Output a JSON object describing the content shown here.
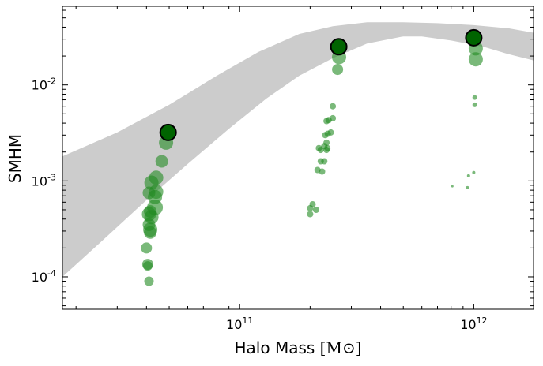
{
  "chart_data": {
    "type": "scatter",
    "xlabel": "Halo Mass",
    "xlabel_unit": "[M⊙]",
    "ylabel": "SMHM",
    "xscale": "log",
    "yscale": "log",
    "xlim": [
      17500000000.0,
      1800000000000.0
    ],
    "ylim": [
      4.6e-05,
      0.066
    ],
    "x_ticks": [
      {
        "value": 100000000000.0,
        "base": "10",
        "exp": "11"
      },
      {
        "value": 1000000000000.0,
        "base": "10",
        "exp": "12"
      }
    ],
    "y_ticks": [
      {
        "value": 0.0001,
        "base": "10",
        "exp": "-4"
      },
      {
        "value": 0.001,
        "base": "10",
        "exp": "-3"
      },
      {
        "value": 0.01,
        "base": "10",
        "exp": "-2"
      }
    ],
    "grid": false,
    "band": {
      "color": "#cccccc",
      "upper": [
        [
          17500000000.0,
          0.0018
        ],
        [
          30000000000.0,
          0.0032
        ],
        [
          50000000000.0,
          0.0062
        ],
        [
          80000000000.0,
          0.0125
        ],
        [
          120000000000.0,
          0.022
        ],
        [
          180000000000.0,
          0.034
        ],
        [
          250000000000.0,
          0.041
        ],
        [
          350000000000.0,
          0.045
        ],
        [
          500000000000.0,
          0.045
        ],
        [
          700000000000.0,
          0.044
        ],
        [
          1000000000000.0,
          0.042
        ],
        [
          1400000000000.0,
          0.039
        ],
        [
          1800000000000.0,
          0.035
        ]
      ],
      "lower": [
        [
          17500000000.0,
          0.0001
        ],
        [
          25000000000.0,
          0.00022
        ],
        [
          40000000000.0,
          0.00063
        ],
        [
          60000000000.0,
          0.0015
        ],
        [
          90000000000.0,
          0.0035
        ],
        [
          130000000000.0,
          0.0072
        ],
        [
          180000000000.0,
          0.0125
        ],
        [
          250000000000.0,
          0.019
        ],
        [
          350000000000.0,
          0.027
        ],
        [
          500000000000.0,
          0.032
        ],
        [
          600000000000.0,
          0.032
        ],
        [
          800000000000.0,
          0.029
        ],
        [
          1100000000000.0,
          0.025
        ],
        [
          1400000000000.0,
          0.021
        ],
        [
          1800000000000.0,
          0.018
        ]
      ]
    },
    "series": [
      {
        "color": "#228b22",
        "opacity": 0.6,
        "points": [
          [
            41000000000.0,
            9e-05,
            6
          ],
          [
            40500000000.0,
            0.000135,
            7
          ],
          [
            40500000000.0,
            0.00013,
            6
          ],
          [
            40000000000.0,
            0.0002,
            7
          ],
          [
            41500000000.0,
            0.00029,
            8
          ],
          [
            41500000000.0,
            0.00031,
            9
          ],
          [
            41000000000.0,
            0.00035,
            8
          ],
          [
            42000000000.0,
            0.00042,
            9
          ],
          [
            41000000000.0,
            0.00045,
            9
          ],
          [
            41500000000.0,
            0.00048,
            8
          ],
          [
            43500000000.0,
            0.00053,
            10
          ],
          [
            43500000000.0,
            0.00068,
            9
          ],
          [
            41000000000.0,
            0.00075,
            8
          ],
          [
            44000000000.0,
            0.00077,
            9
          ],
          [
            42000000000.0,
            0.00096,
            9
          ],
          [
            44000000000.0,
            0.00108,
            9
          ],
          [
            46500000000.0,
            0.0016,
            8
          ],
          [
            48500000000.0,
            0.0025,
            9
          ],
          [
            200000000000.0,
            0.00045,
            4
          ],
          [
            200000000000.0,
            0.00052,
            4
          ],
          [
            205000000000.0,
            0.00057,
            4
          ],
          [
            212000000000.0,
            0.0005,
            4
          ],
          [
            215000000000.0,
            0.0013,
            4
          ],
          [
            225000000000.0,
            0.00125,
            4
          ],
          [
            222000000000.0,
            0.0016,
            4
          ],
          [
            230000000000.0,
            0.0016,
            4
          ],
          [
            218000000000.0,
            0.0022,
            4
          ],
          [
            222000000000.0,
            0.0021,
            4
          ],
          [
            230000000000.0,
            0.0023,
            4
          ],
          [
            235000000000.0,
            0.0021,
            4
          ],
          [
            237000000000.0,
            0.0022,
            4
          ],
          [
            235000000000.0,
            0.0025,
            4
          ],
          [
            232000000000.0,
            0.003,
            4
          ],
          [
            238000000000.0,
            0.0031,
            4
          ],
          [
            245000000000.0,
            0.0032,
            4
          ],
          [
            235000000000.0,
            0.0042,
            4
          ],
          [
            240000000000.0,
            0.0043,
            4
          ],
          [
            250000000000.0,
            0.0045,
            4
          ],
          [
            250000000000.0,
            0.006,
            4
          ],
          [
            262000000000.0,
            0.0145,
            7
          ],
          [
            266000000000.0,
            0.0195,
            9
          ],
          [
            810000000000.0,
            0.00088,
            1.5
          ],
          [
            940000000000.0,
            0.00085,
            2
          ],
          [
            950000000000.0,
            0.00113,
            2
          ],
          [
            1000000000000.0,
            0.00122,
            2
          ],
          [
            1010000000000.0,
            0.0062,
            3
          ],
          [
            1010000000000.0,
            0.0074,
            3
          ],
          [
            1020000000000.0,
            0.0185,
            9
          ],
          [
            1020000000000.0,
            0.024,
            9
          ]
        ]
      }
    ],
    "highlight": {
      "fill": "#006400",
      "stroke": "#000000",
      "points": [
        [
          49500000000.0,
          0.0032
        ],
        [
          265000000000.0,
          0.025
        ],
        [
          1000000000000.0,
          0.031
        ]
      ]
    }
  }
}
